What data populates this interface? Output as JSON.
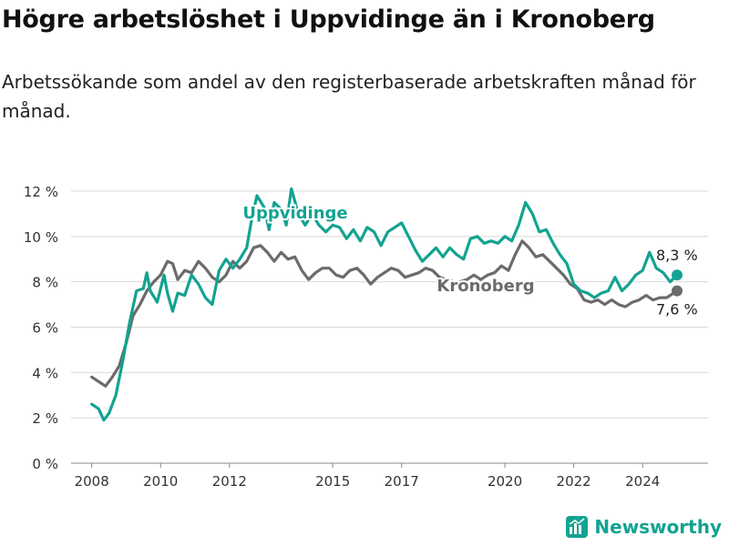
{
  "title": "Högre arbetslöshet i Uppvidinge än i Kronoberg",
  "subtitle": "Arbetssökande som andel av den registerbaserade arbetskraften månad för månad.",
  "brand": {
    "name": "Newsworthy",
    "color": "#12a391"
  },
  "chart_data": {
    "type": "line",
    "title": "Högre arbetslöshet i Uppvidinge än i Kronoberg",
    "xlabel": "",
    "ylabel": "",
    "xlim": [
      2007.4,
      2025.9
    ],
    "ylim": [
      0,
      12
    ],
    "yticks": [
      0,
      2,
      4,
      6,
      8,
      10,
      12
    ],
    "ytick_labels": [
      "0 %",
      "2 %",
      "4 %",
      "6 %",
      "8 %",
      "10 %",
      "12 %"
    ],
    "xticks": [
      2008,
      2010,
      2012,
      2015,
      2017,
      2020,
      2022,
      2024
    ],
    "xtick_labels": [
      "2008",
      "2010",
      "2012",
      "2015",
      "2017",
      "2020",
      "2022",
      "2024"
    ],
    "grid": true,
    "legend": "inline labels",
    "series": [
      {
        "name": "Uppvidinge",
        "color": "#12a391",
        "end_label": "8,3 %",
        "points": [
          [
            2008.0,
            2.6
          ],
          [
            2008.2,
            2.4
          ],
          [
            2008.35,
            1.9
          ],
          [
            2008.5,
            2.2
          ],
          [
            2008.7,
            3.0
          ],
          [
            2008.9,
            4.5
          ],
          [
            2009.1,
            6.2
          ],
          [
            2009.3,
            7.6
          ],
          [
            2009.5,
            7.7
          ],
          [
            2009.6,
            8.4
          ],
          [
            2009.7,
            7.6
          ],
          [
            2009.9,
            7.1
          ],
          [
            2010.1,
            8.3
          ],
          [
            2010.2,
            7.5
          ],
          [
            2010.35,
            6.7
          ],
          [
            2010.5,
            7.5
          ],
          [
            2010.7,
            7.4
          ],
          [
            2010.9,
            8.3
          ],
          [
            2011.1,
            7.9
          ],
          [
            2011.3,
            7.3
          ],
          [
            2011.5,
            7.0
          ],
          [
            2011.7,
            8.5
          ],
          [
            2011.9,
            9.0
          ],
          [
            2012.1,
            8.6
          ],
          [
            2012.3,
            9.0
          ],
          [
            2012.5,
            9.5
          ],
          [
            2012.65,
            10.8
          ],
          [
            2012.8,
            11.8
          ],
          [
            2013.0,
            11.3
          ],
          [
            2013.15,
            10.3
          ],
          [
            2013.3,
            11.5
          ],
          [
            2013.5,
            11.2
          ],
          [
            2013.65,
            10.5
          ],
          [
            2013.8,
            12.1
          ],
          [
            2014.0,
            11.0
          ],
          [
            2014.2,
            10.5
          ],
          [
            2014.4,
            11.0
          ],
          [
            2014.6,
            10.5
          ],
          [
            2014.8,
            10.2
          ],
          [
            2015.0,
            10.5
          ],
          [
            2015.2,
            10.4
          ],
          [
            2015.4,
            9.9
          ],
          [
            2015.6,
            10.3
          ],
          [
            2015.8,
            9.8
          ],
          [
            2016.0,
            10.4
          ],
          [
            2016.2,
            10.2
          ],
          [
            2016.4,
            9.6
          ],
          [
            2016.6,
            10.2
          ],
          [
            2016.8,
            10.4
          ],
          [
            2017.0,
            10.6
          ],
          [
            2017.2,
            10.0
          ],
          [
            2017.4,
            9.4
          ],
          [
            2017.6,
            8.9
          ],
          [
            2017.8,
            9.2
          ],
          [
            2018.0,
            9.5
          ],
          [
            2018.2,
            9.1
          ],
          [
            2018.4,
            9.5
          ],
          [
            2018.6,
            9.2
          ],
          [
            2018.8,
            9.0
          ],
          [
            2019.0,
            9.9
          ],
          [
            2019.2,
            10.0
          ],
          [
            2019.4,
            9.7
          ],
          [
            2019.6,
            9.8
          ],
          [
            2019.8,
            9.7
          ],
          [
            2020.0,
            10.0
          ],
          [
            2020.2,
            9.8
          ],
          [
            2020.4,
            10.5
          ],
          [
            2020.6,
            11.5
          ],
          [
            2020.8,
            11.0
          ],
          [
            2021.0,
            10.2
          ],
          [
            2021.2,
            10.3
          ],
          [
            2021.4,
            9.7
          ],
          [
            2021.6,
            9.2
          ],
          [
            2021.8,
            8.8
          ],
          [
            2022.0,
            7.9
          ],
          [
            2022.2,
            7.6
          ],
          [
            2022.4,
            7.5
          ],
          [
            2022.6,
            7.3
          ],
          [
            2022.8,
            7.5
          ],
          [
            2023.0,
            7.6
          ],
          [
            2023.2,
            8.2
          ],
          [
            2023.4,
            7.6
          ],
          [
            2023.6,
            7.9
          ],
          [
            2023.8,
            8.3
          ],
          [
            2024.0,
            8.5
          ],
          [
            2024.2,
            9.3
          ],
          [
            2024.4,
            8.6
          ],
          [
            2024.6,
            8.4
          ],
          [
            2024.8,
            8.0
          ],
          [
            2025.0,
            8.3
          ]
        ]
      },
      {
        "name": "Kronoberg",
        "color": "#6b6b6b",
        "end_label": "7,6 %",
        "points": [
          [
            2008.0,
            3.8
          ],
          [
            2008.2,
            3.6
          ],
          [
            2008.4,
            3.4
          ],
          [
            2008.6,
            3.8
          ],
          [
            2008.8,
            4.3
          ],
          [
            2009.0,
            5.3
          ],
          [
            2009.2,
            6.5
          ],
          [
            2009.4,
            7.0
          ],
          [
            2009.6,
            7.6
          ],
          [
            2009.8,
            8.0
          ],
          [
            2010.0,
            8.3
          ],
          [
            2010.2,
            8.9
          ],
          [
            2010.35,
            8.8
          ],
          [
            2010.5,
            8.1
          ],
          [
            2010.7,
            8.5
          ],
          [
            2010.9,
            8.4
          ],
          [
            2011.1,
            8.9
          ],
          [
            2011.3,
            8.6
          ],
          [
            2011.5,
            8.2
          ],
          [
            2011.7,
            8.0
          ],
          [
            2011.9,
            8.3
          ],
          [
            2012.1,
            8.9
          ],
          [
            2012.3,
            8.6
          ],
          [
            2012.5,
            8.9
          ],
          [
            2012.7,
            9.5
          ],
          [
            2012.9,
            9.6
          ],
          [
            2013.1,
            9.3
          ],
          [
            2013.3,
            8.9
          ],
          [
            2013.5,
            9.3
          ],
          [
            2013.7,
            9.0
          ],
          [
            2013.9,
            9.1
          ],
          [
            2014.1,
            8.5
          ],
          [
            2014.3,
            8.1
          ],
          [
            2014.5,
            8.4
          ],
          [
            2014.7,
            8.6
          ],
          [
            2014.9,
            8.6
          ],
          [
            2015.1,
            8.3
          ],
          [
            2015.3,
            8.2
          ],
          [
            2015.5,
            8.5
          ],
          [
            2015.7,
            8.6
          ],
          [
            2015.9,
            8.3
          ],
          [
            2016.1,
            7.9
          ],
          [
            2016.3,
            8.2
          ],
          [
            2016.5,
            8.4
          ],
          [
            2016.7,
            8.6
          ],
          [
            2016.9,
            8.5
          ],
          [
            2017.1,
            8.2
          ],
          [
            2017.3,
            8.3
          ],
          [
            2017.5,
            8.4
          ],
          [
            2017.7,
            8.6
          ],
          [
            2017.9,
            8.5
          ],
          [
            2018.1,
            8.2
          ],
          [
            2018.3,
            8.1
          ],
          [
            2018.5,
            8.0
          ],
          [
            2018.7,
            8.0
          ],
          [
            2018.9,
            8.1
          ],
          [
            2019.1,
            8.3
          ],
          [
            2019.3,
            8.1
          ],
          [
            2019.5,
            8.3
          ],
          [
            2019.7,
            8.4
          ],
          [
            2019.9,
            8.7
          ],
          [
            2020.1,
            8.5
          ],
          [
            2020.3,
            9.2
          ],
          [
            2020.5,
            9.8
          ],
          [
            2020.7,
            9.5
          ],
          [
            2020.9,
            9.1
          ],
          [
            2021.1,
            9.2
          ],
          [
            2021.3,
            8.9
          ],
          [
            2021.5,
            8.6
          ],
          [
            2021.7,
            8.3
          ],
          [
            2021.9,
            7.9
          ],
          [
            2022.1,
            7.7
          ],
          [
            2022.3,
            7.2
          ],
          [
            2022.5,
            7.1
          ],
          [
            2022.7,
            7.2
          ],
          [
            2022.9,
            7.0
          ],
          [
            2023.1,
            7.2
          ],
          [
            2023.3,
            7.0
          ],
          [
            2023.5,
            6.9
          ],
          [
            2023.7,
            7.1
          ],
          [
            2023.9,
            7.2
          ],
          [
            2024.1,
            7.4
          ],
          [
            2024.3,
            7.2
          ],
          [
            2024.5,
            7.3
          ],
          [
            2024.7,
            7.3
          ],
          [
            2024.9,
            7.5
          ],
          [
            2025.0,
            7.6
          ]
        ]
      }
    ]
  }
}
